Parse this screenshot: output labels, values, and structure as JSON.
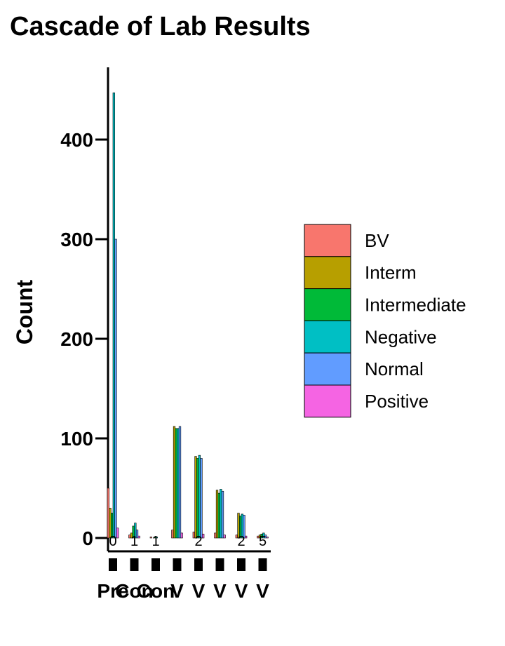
{
  "chart_data": {
    "type": "bar",
    "stacked": false,
    "title": "Cascade of Lab Results",
    "xlabel": "",
    "ylabel": "Count",
    "ylim": [
      0,
      470
    ],
    "yticks": [
      0,
      100,
      200,
      300,
      400
    ],
    "categories": [
      "Pre",
      "Con",
      "Con",
      "V",
      "V",
      "V",
      "V",
      "V"
    ],
    "series": [
      {
        "name": "BV",
        "color": "#F8766D",
        "values": [
          50,
          3,
          1,
          8,
          6,
          5,
          3,
          2
        ]
      },
      {
        "name": "Interm",
        "color": "#B79F00",
        "values": [
          30,
          5,
          0,
          112,
          82,
          48,
          25,
          3
        ]
      },
      {
        "name": "Intermediate",
        "color": "#00BA38",
        "values": [
          25,
          12,
          1,
          110,
          80,
          45,
          22,
          4
        ]
      },
      {
        "name": "Negative",
        "color": "#00BFC4",
        "values": [
          447,
          15,
          1,
          110,
          83,
          49,
          24,
          5
        ]
      },
      {
        "name": "Normal",
        "color": "#619CFF",
        "values": [
          300,
          8,
          0,
          112,
          80,
          47,
          23,
          3
        ]
      },
      {
        "name": "Positive",
        "color": "#F564E3",
        "values": [
          10,
          2,
          0,
          5,
          4,
          3,
          2,
          1
        ]
      }
    ],
    "data_labels": [
      "0",
      "1",
      "1",
      "",
      "2",
      "",
      "2",
      "5"
    ],
    "legend_position": "right",
    "grid": false
  }
}
